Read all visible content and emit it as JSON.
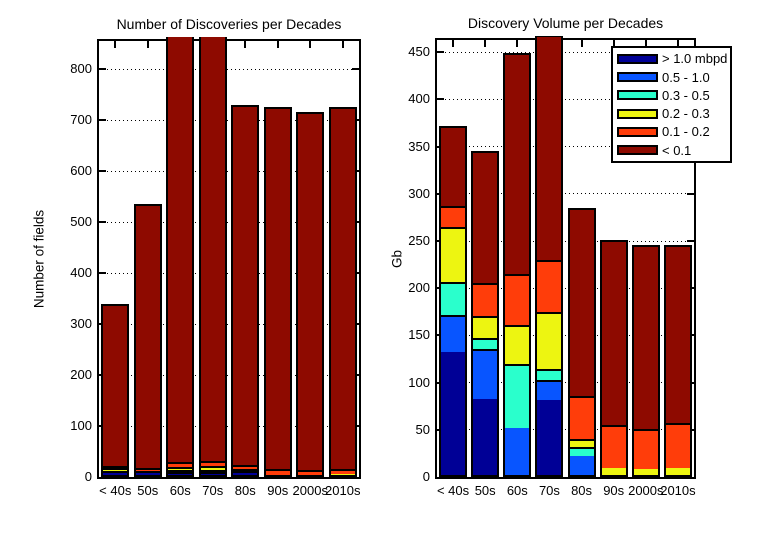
{
  "chart_data": [
    {
      "type": "bar",
      "stacked": true,
      "title": "Number of Discoveries per Decades",
      "xlabel": "",
      "ylabel": "Number of fields",
      "categories": [
        "< 40s",
        "50s",
        "60s",
        "70s",
        "80s",
        "90s",
        "2000s",
        "2010s"
      ],
      "yticks": [
        0,
        100,
        200,
        300,
        400,
        500,
        600,
        700,
        800
      ],
      "ylim": [
        0,
        855
      ],
      "grid": true,
      "note": "60s and 70s bars are clipped at the top of the axes",
      "series": [
        {
          "name": "> 1.0 mbpd",
          "color": "#000096",
          "values": [
            3,
            4,
            2,
            2,
            3,
            0,
            0,
            0
          ]
        },
        {
          "name": "0.5 - 1.0",
          "color": "#0855FF",
          "values": [
            0,
            0,
            4,
            1,
            0,
            0,
            0,
            0
          ]
        },
        {
          "name": "0.3 - 0.5",
          "color": "#2AFFCC",
          "values": [
            3,
            0,
            4,
            1,
            1,
            0,
            0,
            0
          ]
        },
        {
          "name": "0.2 - 0.3",
          "color": "#EDF511",
          "values": [
            6,
            3,
            6,
            7,
            2,
            1,
            1,
            2
          ]
        },
        {
          "name": "0.1 - 0.2",
          "color": "#FF3D0A",
          "values": [
            5,
            6,
            9,
            10,
            9,
            11,
            9,
            10
          ]
        },
        {
          "name": "< 0.1",
          "color": "#8E0A00",
          "values": [
            323,
            522,
            840,
            844,
            715,
            713,
            705,
            713
          ]
        }
      ],
      "totals": [
        340,
        535,
        865,
        865,
        730,
        725,
        715,
        725
      ]
    },
    {
      "type": "bar",
      "stacked": true,
      "title": "Discovery Volume per Decades",
      "xlabel": "",
      "ylabel": "Gb",
      "categories": [
        "< 40s",
        "50s",
        "60s",
        "70s",
        "80s",
        "90s",
        "2000s",
        "2010s"
      ],
      "yticks": [
        0,
        50,
        100,
        150,
        200,
        250,
        300,
        350,
        400,
        450
      ],
      "ylim": [
        0,
        463
      ],
      "grid": true,
      "legend_position": "top-right",
      "note": "70s bar is clipped at the top of the axes",
      "series": [
        {
          "name": "> 1.0 mbpd",
          "color": "#000096",
          "values": [
            130,
            81,
            0,
            80,
            0,
            0,
            0,
            0
          ]
        },
        {
          "name": "0.5 - 1.0",
          "color": "#0855FF",
          "values": [
            40,
            53,
            50,
            21,
            20,
            0,
            0,
            0
          ]
        },
        {
          "name": "0.3 - 0.5",
          "color": "#2AFFCC",
          "values": [
            35,
            11,
            68,
            11,
            10,
            0,
            0,
            0
          ]
        },
        {
          "name": "0.2 - 0.3",
          "color": "#EDF511",
          "values": [
            58,
            24,
            41,
            61,
            8,
            7,
            6,
            7
          ]
        },
        {
          "name": "0.1 - 0.2",
          "color": "#FF3D0A",
          "values": [
            22,
            35,
            54,
            55,
            46,
            46,
            43,
            48
          ]
        },
        {
          "name": "< 0.1",
          "color": "#8E0A00",
          "values": [
            87,
            141,
            236,
            238,
            201,
            198,
            197,
            191
          ]
        }
      ],
      "totals": [
        372,
        345,
        449,
        466,
        285,
        251,
        246,
        246
      ]
    }
  ],
  "colors": {
    "background": "#FFFFFF",
    "axis": "#000000",
    "grid": "#000000"
  }
}
